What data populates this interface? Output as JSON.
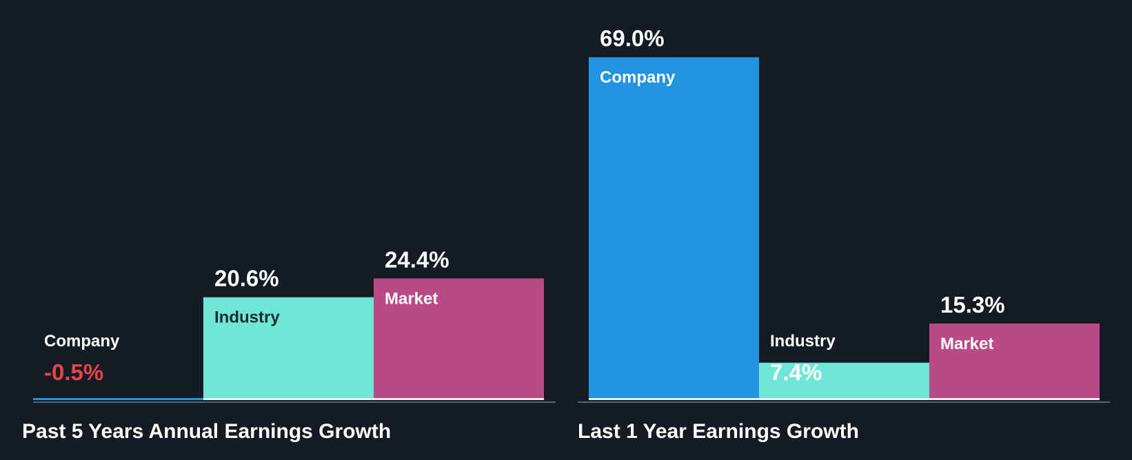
{
  "chart_data": [
    {
      "type": "bar",
      "title": "Past 5 Years Annual Earnings Growth",
      "categories": [
        "Company",
        "Industry",
        "Market"
      ],
      "values": [
        -0.5,
        20.6,
        24.4
      ],
      "value_labels": [
        "-0.5%",
        "20.6%",
        "24.4%"
      ],
      "unit": "%",
      "ylim": [
        0,
        69.0
      ]
    },
    {
      "type": "bar",
      "title": "Last 1 Year Earnings Growth",
      "categories": [
        "Company",
        "Industry",
        "Market"
      ],
      "values": [
        69.0,
        7.4,
        15.3
      ],
      "value_labels": [
        "69.0%",
        "7.4%",
        "15.3%"
      ],
      "unit": "%",
      "ylim": [
        0,
        69.0
      ]
    }
  ],
  "colors": {
    "background": "#151b24",
    "company": "#2394df",
    "industry": "#6ee7d7",
    "market": "#b94a85",
    "negative": "#e64545",
    "text_light": "#ffffff",
    "text_dark": "#1c2a33",
    "axis": "#5a6370"
  }
}
